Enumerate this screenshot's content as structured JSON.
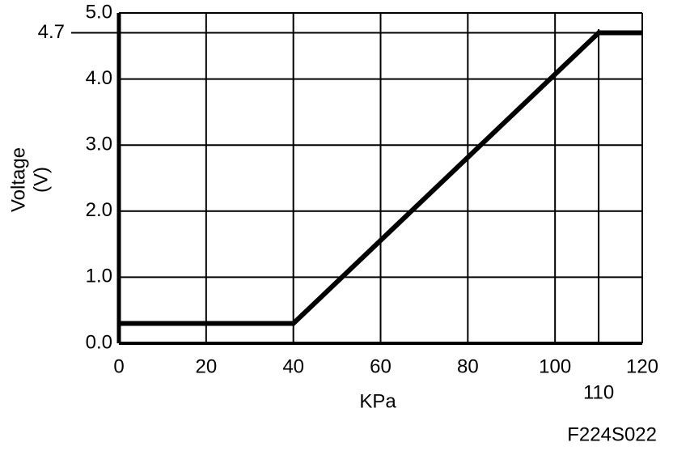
{
  "chart_data": {
    "type": "line",
    "xlabel": "KPa",
    "ylabel": [
      "Voltage",
      "(V)"
    ],
    "figure_id": "F224S022",
    "x": [
      0,
      40,
      110,
      120
    ],
    "series": [
      {
        "color": "#000000",
        "values": [
          0.3,
          0.3,
          4.7,
          4.7
        ]
      }
    ],
    "xlim": [
      0,
      120
    ],
    "ylim": [
      0,
      5
    ],
    "xticks": [
      0,
      20,
      40,
      60,
      80,
      100,
      120
    ],
    "yticks": [
      {
        "value": 0,
        "label": "0.0"
      },
      {
        "value": 1,
        "label": "1.0"
      },
      {
        "value": 2,
        "label": "2.0"
      },
      {
        "value": 3,
        "label": "3.0"
      },
      {
        "value": 4,
        "label": "4.0"
      },
      {
        "value": 5,
        "label": "5.0"
      }
    ],
    "x_markers": [
      110
    ],
    "y_markers": [
      4.7
    ],
    "grid": true
  }
}
